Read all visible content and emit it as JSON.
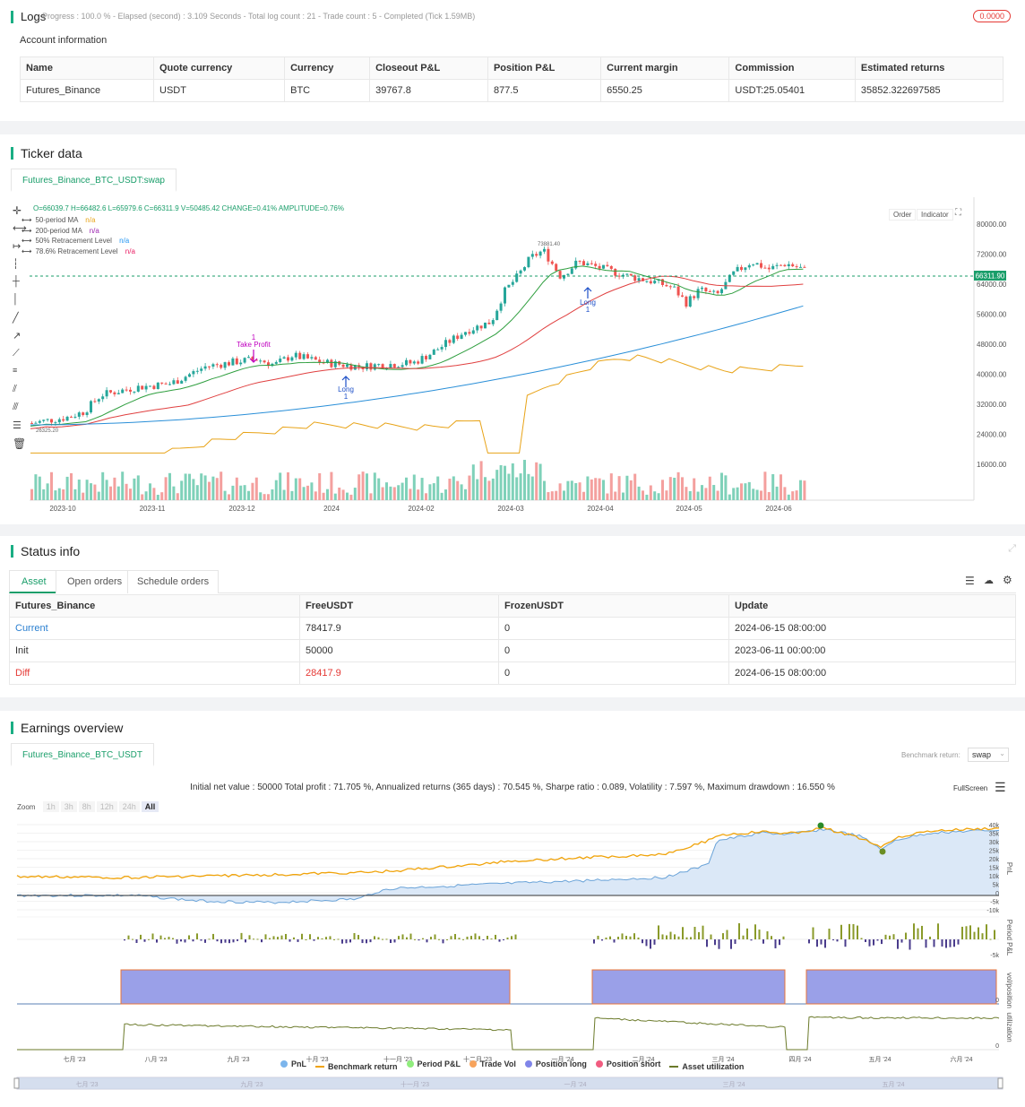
{
  "logs": {
    "title": "Logs",
    "progress_text": "Progress : 100.0 % - Elapsed (second) : 3.109  Seconds - Total log count : 21 - Trade count : 5 - Completed (Tick 1.59MB)",
    "badge": "0.0000"
  },
  "account": {
    "title": "Account information",
    "headers": [
      "Name",
      "Quote currency",
      "Currency",
      "Closeout P&L",
      "Position P&L",
      "Current margin",
      "Commission",
      "Estimated returns"
    ],
    "row": [
      "Futures_Binance",
      "USDT",
      "BTC",
      "39767.8",
      "877.5",
      "6550.25",
      "USDT:25.05401",
      "35852.322697585"
    ]
  },
  "ticker": {
    "title": "Ticker data",
    "tab": "Futures_Binance_BTC_USDT:swap",
    "ohlc": "O=66039.7 H=66482.6 L=65979.6 C=66311.9 V=50485.42 CHANGE=0.41% AMPLITUDE=0.76%",
    "legend": [
      {
        "label": "50-period MA",
        "value": "n/a",
        "color": "#e8a317"
      },
      {
        "label": "200-period MA",
        "value": "n/a",
        "color": "#9c27b0"
      },
      {
        "label": "50% Retracement Level",
        "value": "n/a",
        "color": "#2196f3"
      },
      {
        "label": "78.6% Retracement Level",
        "value": "n/a",
        "color": "#e91e63"
      }
    ],
    "buttons": [
      "Order",
      "Indicator"
    ],
    "price_tag": "66311.90",
    "high_label": "73881.40",
    "low_label": "26325.20",
    "annotations": [
      {
        "text": "1",
        "color": "#c000c0"
      },
      {
        "text": "Take Profit",
        "color": "#c000c0"
      },
      {
        "text": "Long",
        "color": "#1e50c8"
      },
      {
        "text": "1",
        "color": "#1e50c8"
      },
      {
        "text": "Long",
        "color": "#1e50c8"
      },
      {
        "text": "1",
        "color": "#1e50c8"
      }
    ],
    "y_ticks": [
      "80000.00",
      "72000.00",
      "64000.00",
      "56000.00",
      "48000.00",
      "40000.00",
      "32000.00",
      "24000.00",
      "16000.00"
    ],
    "x_ticks": [
      "2023-10",
      "2023-11",
      "2023-12",
      "2024",
      "2024-02",
      "2024-03",
      "2024-04",
      "2024-05",
      "2024-06"
    ]
  },
  "status": {
    "title": "Status info",
    "tabs": [
      "Asset",
      "Open orders",
      "Schedule orders"
    ],
    "headers": [
      "Futures_Binance",
      "FreeUSDT",
      "FrozenUSDT",
      "Update"
    ],
    "rows": [
      {
        "name": "Current",
        "free": "78417.9",
        "frozen": "0",
        "update": "2024-06-15 08:00:00"
      },
      {
        "name": "Init",
        "free": "50000",
        "frozen": "0",
        "update": "2023-06-11 00:00:00"
      },
      {
        "name": "Diff",
        "free": "28417.9",
        "frozen": "0",
        "update": "2024-06-15 08:00:00"
      }
    ]
  },
  "earnings": {
    "title": "Earnings overview",
    "tab": "Futures_Binance_BTC_USDT",
    "benchmark_label": "Benchmark return:",
    "benchmark_value": "swap",
    "summary": "Initial net value : 50000 Total profit : 71.705 %, Annualized returns (365 days) : 70.545 %, Sharpe ratio : 0.089, Volatility : 7.597 %, Maximum drawdown : 16.550 %",
    "fullscreen": "FullScreen",
    "zoom_label": "Zoom",
    "zoom_options": [
      "1h",
      "3h",
      "8h",
      "12h",
      "24h",
      "All"
    ],
    "zoom_selected": "All",
    "y_ticks": [
      "40k",
      "35k",
      "30k",
      "25k",
      "20k",
      "15k",
      "10k",
      "5k",
      "0",
      "-5k",
      "-10k"
    ],
    "pane_labels": [
      "PnL",
      "Period P&L",
      "vol/position",
      "utilization"
    ],
    "x_ticks": [
      "七月 '23",
      "八月 '23",
      "九月 '23",
      "十月 '23",
      "十一月 '23",
      "十二月 '23",
      "一月 '24",
      "二月 '24",
      "三月 '24",
      "四月 '24",
      "五月 '24",
      "六月 '24"
    ],
    "legend": [
      {
        "label": "PnL",
        "color": "#7cb5ec",
        "kind": "dot"
      },
      {
        "label": "Benchmark return",
        "color": "#f0a30a",
        "kind": "line"
      },
      {
        "label": "Period P&L",
        "color": "#90ed7d",
        "kind": "dot"
      },
      {
        "label": "Trade Vol",
        "color": "#f7a35c",
        "kind": "dot"
      },
      {
        "label": "Position long",
        "color": "#8085e9",
        "kind": "dot"
      },
      {
        "label": "Position short",
        "color": "#f15c80",
        "kind": "dot"
      },
      {
        "label": "Asset utilization",
        "color": "#6b7a2a",
        "kind": "line"
      }
    ],
    "nav_ticks": [
      "七月 '23",
      "九月 '23",
      "十一月 '23",
      "一月 '24",
      "三月 '24",
      "五月 '24"
    ]
  }
}
